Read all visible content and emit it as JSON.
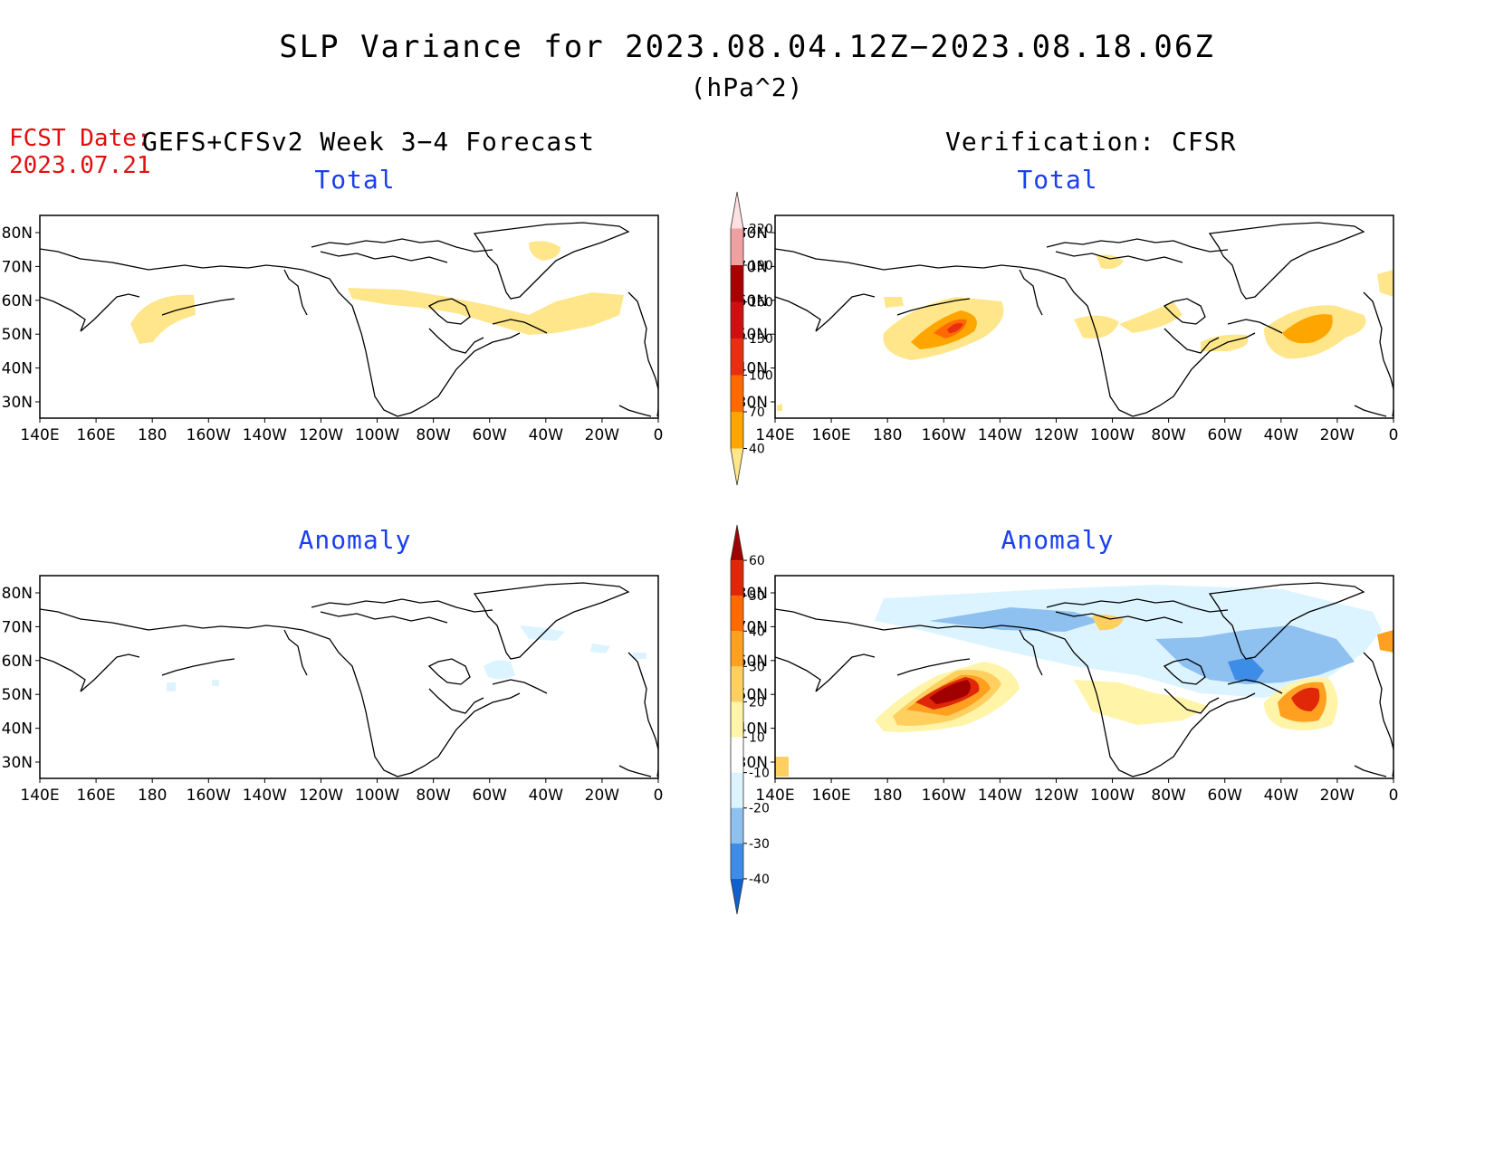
{
  "title": "SLP Variance for 2023.08.04.12Z−2023.08.18.06Z",
  "units": "(hPa^2)",
  "fcst_label": "FCST Date:",
  "fcst_date": "2023.07.21",
  "left_header": "GEFS+CFSv2 Week 3−4 Forecast",
  "right_header": "Verification: CFSR",
  "panel_titles": {
    "total": "Total",
    "anomaly": "Anomaly"
  },
  "lon_labels": [
    "140E",
    "160E",
    "180",
    "160W",
    "140W",
    "120W",
    "100W",
    "80W",
    "60W",
    "40W",
    "20W",
    "0"
  ],
  "lat_labels": [
    "80N",
    "70N",
    "60N",
    "50N",
    "40N",
    "30N"
  ],
  "total_colorbar": {
    "levels": [
      "40",
      "70",
      "100",
      "130",
      "160",
      "190",
      "220"
    ],
    "colors": [
      "#ffe68a",
      "#ffa500",
      "#ff6a00",
      "#e83010",
      "#d01010",
      "#a80000",
      "#f0a0a0",
      "#ffe0e0"
    ]
  },
  "anomaly_colorbar": {
    "levels": [
      "-40",
      "-30",
      "-20",
      "-10",
      "10",
      "20",
      "30",
      "40",
      "50",
      "60"
    ],
    "colors": [
      "#1060d0",
      "#3c8ce8",
      "#8ec0f0",
      "#dcf4ff",
      "#ffffff",
      "#fff4a8",
      "#ffd060",
      "#ffa020",
      "#ff6a00",
      "#e02808",
      "#a00000"
    ]
  },
  "colors": {
    "title_red": "#e01010",
    "panel_title_blue": "#1a3ff0"
  }
}
